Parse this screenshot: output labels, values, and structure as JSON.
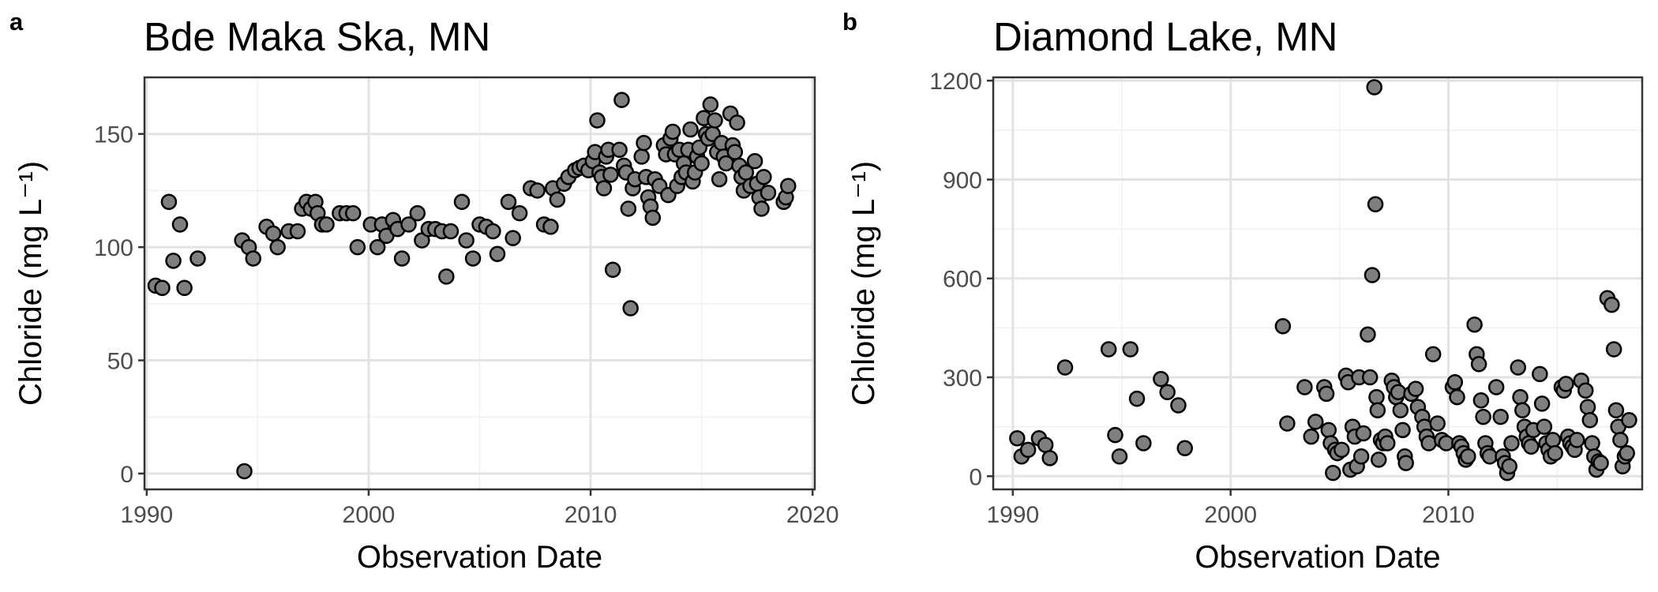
{
  "panels": [
    {
      "tag": "a",
      "title": "Bde Maka Ska, MN"
    },
    {
      "tag": "b",
      "title": "Diamond Lake, MN"
    }
  ],
  "chart_data": [
    {
      "type": "scatter",
      "title": "Bde Maka Ska, MN",
      "xlabel": "Observation Date",
      "ylabel": "Chloride (mg L⁻¹)",
      "xlim": [
        1989.9,
        2020.1
      ],
      "ylim": [
        -7,
        175
      ],
      "xticks": [
        1990,
        2000,
        2010,
        2020
      ],
      "xtick_labels": [
        "1990",
        "2000",
        "2010",
        "2020"
      ],
      "yticks": [
        0,
        50,
        100,
        150
      ],
      "ytick_labels": [
        "0",
        "50",
        "100",
        "150"
      ],
      "grid": true,
      "legend": "none",
      "marker_fill": "#7f7f7f",
      "marker_edge": "#000000",
      "points": [
        [
          1990.4,
          83
        ],
        [
          1990.7,
          82
        ],
        [
          1991.0,
          120
        ],
        [
          1991.2,
          94
        ],
        [
          1991.5,
          110
        ],
        [
          1991.7,
          82
        ],
        [
          1992.3,
          95
        ],
        [
          1994.4,
          1
        ],
        [
          1994.3,
          103
        ],
        [
          1994.6,
          100
        ],
        [
          1994.8,
          95
        ],
        [
          1995.4,
          109
        ],
        [
          1995.7,
          106
        ],
        [
          1995.9,
          100
        ],
        [
          1996.4,
          107
        ],
        [
          1996.8,
          107
        ],
        [
          1997.0,
          117
        ],
        [
          1997.2,
          120
        ],
        [
          1997.4,
          117
        ],
        [
          1997.6,
          120
        ],
        [
          1997.7,
          115
        ],
        [
          1997.9,
          110
        ],
        [
          1998.1,
          110
        ],
        [
          1998.7,
          115
        ],
        [
          1999.0,
          115
        ],
        [
          1999.3,
          115
        ],
        [
          1999.5,
          100
        ],
        [
          2000.1,
          110
        ],
        [
          2000.4,
          100
        ],
        [
          2000.6,
          110
        ],
        [
          2000.8,
          105
        ],
        [
          2001.1,
          112
        ],
        [
          2001.3,
          108
        ],
        [
          2001.5,
          95
        ],
        [
          2001.8,
          110
        ],
        [
          2002.2,
          115
        ],
        [
          2002.4,
          103
        ],
        [
          2002.7,
          108
        ],
        [
          2003.0,
          108
        ],
        [
          2003.3,
          107
        ],
        [
          2003.5,
          87
        ],
        [
          2003.7,
          107
        ],
        [
          2004.2,
          120
        ],
        [
          2004.4,
          103
        ],
        [
          2004.7,
          95
        ],
        [
          2005.0,
          110
        ],
        [
          2005.3,
          109
        ],
        [
          2005.6,
          107
        ],
        [
          2005.8,
          97
        ],
        [
          2006.3,
          120
        ],
        [
          2006.5,
          104
        ],
        [
          2006.8,
          115
        ],
        [
          2007.3,
          126
        ],
        [
          2007.6,
          125
        ],
        [
          2007.9,
          110
        ],
        [
          2008.2,
          109
        ],
        [
          2008.3,
          126
        ],
        [
          2008.5,
          121
        ],
        [
          2008.8,
          128
        ],
        [
          2009.0,
          131
        ],
        [
          2009.3,
          134
        ],
        [
          2009.5,
          135
        ],
        [
          2009.7,
          136
        ],
        [
          2009.9,
          134
        ],
        [
          2010.1,
          138
        ],
        [
          2010.2,
          142
        ],
        [
          2010.3,
          156
        ],
        [
          2010.4,
          133
        ],
        [
          2010.5,
          131
        ],
        [
          2010.6,
          126
        ],
        [
          2010.7,
          140
        ],
        [
          2010.8,
          143
        ],
        [
          2010.9,
          132
        ],
        [
          2011.0,
          90
        ],
        [
          2011.3,
          143
        ],
        [
          2011.4,
          165
        ],
        [
          2011.5,
          136
        ],
        [
          2011.6,
          133
        ],
        [
          2011.7,
          117
        ],
        [
          2011.8,
          73
        ],
        [
          2011.9,
          126
        ],
        [
          2012.0,
          130
        ],
        [
          2012.3,
          140
        ],
        [
          2012.4,
          146
        ],
        [
          2012.5,
          131
        ],
        [
          2012.6,
          122
        ],
        [
          2012.7,
          118
        ],
        [
          2012.8,
          113
        ],
        [
          2012.9,
          130
        ],
        [
          2013.1,
          127
        ],
        [
          2013.3,
          145
        ],
        [
          2013.4,
          141
        ],
        [
          2013.5,
          123
        ],
        [
          2013.6,
          148
        ],
        [
          2013.7,
          151
        ],
        [
          2013.8,
          141
        ],
        [
          2013.9,
          127
        ],
        [
          2014.0,
          143
        ],
        [
          2014.1,
          131
        ],
        [
          2014.2,
          137
        ],
        [
          2014.3,
          133
        ],
        [
          2014.4,
          143
        ],
        [
          2014.5,
          152
        ],
        [
          2014.6,
          129
        ],
        [
          2014.7,
          133
        ],
        [
          2014.8,
          140
        ],
        [
          2014.9,
          144
        ],
        [
          2015.0,
          137
        ],
        [
          2015.1,
          157
        ],
        [
          2015.2,
          150
        ],
        [
          2015.3,
          148
        ],
        [
          2015.4,
          163
        ],
        [
          2015.5,
          150
        ],
        [
          2015.6,
          156
        ],
        [
          2015.7,
          142
        ],
        [
          2015.8,
          130
        ],
        [
          2015.9,
          146
        ],
        [
          2016.0,
          140
        ],
        [
          2016.1,
          137
        ],
        [
          2016.3,
          159
        ],
        [
          2016.4,
          145
        ],
        [
          2016.5,
          142
        ],
        [
          2016.6,
          155
        ],
        [
          2016.7,
          136
        ],
        [
          2016.8,
          131
        ],
        [
          2016.9,
          125
        ],
        [
          2017.0,
          133
        ],
        [
          2017.2,
          127
        ],
        [
          2017.4,
          138
        ],
        [
          2017.5,
          128
        ],
        [
          2017.6,
          122
        ],
        [
          2017.7,
          117
        ],
        [
          2017.8,
          131
        ],
        [
          2018.0,
          124
        ],
        [
          2018.7,
          120
        ],
        [
          2018.8,
          122
        ],
        [
          2018.9,
          127
        ]
      ]
    },
    {
      "type": "scatter",
      "title": "Diamond Lake, MN",
      "xlabel": "Observation Date",
      "ylabel": "Chloride (mg L⁻¹)",
      "xlim": [
        1989.1,
        2018.9
      ],
      "ylim": [
        -40,
        1210
      ],
      "xticks": [
        1990,
        2000,
        2010
      ],
      "xtick_labels": [
        "1990",
        "2000",
        "2010"
      ],
      "yticks": [
        0,
        300,
        600,
        900,
        1200
      ],
      "ytick_labels": [
        "0",
        "300",
        "600",
        "900",
        "1200"
      ],
      "grid": true,
      "legend": "none",
      "marker_fill": "#7f7f7f",
      "marker_edge": "#000000",
      "points": [
        [
          1990.2,
          115
        ],
        [
          1990.4,
          60
        ],
        [
          1990.7,
          80
        ],
        [
          1991.2,
          115
        ],
        [
          1991.5,
          95
        ],
        [
          1991.7,
          55
        ],
        [
          1992.4,
          330
        ],
        [
          1994.4,
          385
        ],
        [
          1994.7,
          125
        ],
        [
          1994.9,
          60
        ],
        [
          1995.4,
          385
        ],
        [
          1995.7,
          235
        ],
        [
          1996.0,
          100
        ],
        [
          1996.8,
          295
        ],
        [
          1997.1,
          255
        ],
        [
          1997.6,
          215
        ],
        [
          1997.9,
          85
        ],
        [
          2002.4,
          455
        ],
        [
          2002.6,
          160
        ],
        [
          2003.4,
          270
        ],
        [
          2003.7,
          120
        ],
        [
          2003.9,
          165
        ],
        [
          2004.3,
          270
        ],
        [
          2004.4,
          250
        ],
        [
          2004.5,
          140
        ],
        [
          2004.6,
          100
        ],
        [
          2004.7,
          10
        ],
        [
          2004.8,
          80
        ],
        [
          2004.9,
          70
        ],
        [
          2005.1,
          80
        ],
        [
          2005.3,
          305
        ],
        [
          2005.4,
          285
        ],
        [
          2005.5,
          20
        ],
        [
          2005.6,
          150
        ],
        [
          2005.7,
          120
        ],
        [
          2005.8,
          30
        ],
        [
          2005.9,
          300
        ],
        [
          2006.0,
          60
        ],
        [
          2006.1,
          130
        ],
        [
          2006.3,
          430
        ],
        [
          2006.4,
          300
        ],
        [
          2006.5,
          610
        ],
        [
          2006.6,
          1180
        ],
        [
          2006.65,
          825
        ],
        [
          2006.7,
          240
        ],
        [
          2006.75,
          200
        ],
        [
          2006.8,
          50
        ],
        [
          2006.9,
          110
        ],
        [
          2007.0,
          100
        ],
        [
          2007.1,
          120
        ],
        [
          2007.2,
          100
        ],
        [
          2007.4,
          290
        ],
        [
          2007.5,
          270
        ],
        [
          2007.6,
          240
        ],
        [
          2007.7,
          255
        ],
        [
          2007.8,
          200
        ],
        [
          2007.9,
          140
        ],
        [
          2008.0,
          60
        ],
        [
          2008.05,
          40
        ],
        [
          2008.3,
          250
        ],
        [
          2008.5,
          265
        ],
        [
          2008.6,
          210
        ],
        [
          2008.8,
          180
        ],
        [
          2008.9,
          150
        ],
        [
          2009.0,
          120
        ],
        [
          2009.1,
          100
        ],
        [
          2009.3,
          370
        ],
        [
          2009.5,
          160
        ],
        [
          2009.7,
          110
        ],
        [
          2009.9,
          100
        ],
        [
          2010.2,
          270
        ],
        [
          2010.3,
          285
        ],
        [
          2010.4,
          240
        ],
        [
          2010.5,
          100
        ],
        [
          2010.6,
          90
        ],
        [
          2010.7,
          70
        ],
        [
          2010.8,
          50
        ],
        [
          2010.9,
          60
        ],
        [
          2011.2,
          460
        ],
        [
          2011.3,
          370
        ],
        [
          2011.4,
          340
        ],
        [
          2011.5,
          230
        ],
        [
          2011.6,
          180
        ],
        [
          2011.7,
          100
        ],
        [
          2011.8,
          70
        ],
        [
          2011.9,
          60
        ],
        [
          2012.2,
          270
        ],
        [
          2012.4,
          180
        ],
        [
          2012.5,
          60
        ],
        [
          2012.6,
          40
        ],
        [
          2012.7,
          10
        ],
        [
          2012.8,
          30
        ],
        [
          2012.9,
          100
        ],
        [
          2013.2,
          330
        ],
        [
          2013.3,
          240
        ],
        [
          2013.4,
          200
        ],
        [
          2013.5,
          150
        ],
        [
          2013.6,
          120
        ],
        [
          2013.7,
          100
        ],
        [
          2013.8,
          90
        ],
        [
          2013.9,
          140
        ],
        [
          2014.2,
          310
        ],
        [
          2014.3,
          220
        ],
        [
          2014.4,
          150
        ],
        [
          2014.5,
          100
        ],
        [
          2014.6,
          80
        ],
        [
          2014.7,
          60
        ],
        [
          2014.8,
          110
        ],
        [
          2014.9,
          70
        ],
        [
          2015.2,
          270
        ],
        [
          2015.3,
          260
        ],
        [
          2015.4,
          280
        ],
        [
          2015.5,
          120
        ],
        [
          2015.6,
          100
        ],
        [
          2015.7,
          90
        ],
        [
          2015.8,
          80
        ],
        [
          2015.9,
          110
        ],
        [
          2016.1,
          290
        ],
        [
          2016.3,
          260
        ],
        [
          2016.4,
          210
        ],
        [
          2016.5,
          170
        ],
        [
          2016.6,
          100
        ],
        [
          2016.7,
          60
        ],
        [
          2016.8,
          20
        ],
        [
          2016.9,
          45
        ],
        [
          2017.0,
          40
        ],
        [
          2017.3,
          540
        ],
        [
          2017.5,
          520
        ],
        [
          2017.6,
          385
        ],
        [
          2017.7,
          200
        ],
        [
          2017.8,
          150
        ],
        [
          2017.9,
          110
        ],
        [
          2018.0,
          30
        ],
        [
          2018.1,
          60
        ],
        [
          2018.2,
          70
        ],
        [
          2018.3,
          170
        ]
      ]
    }
  ]
}
